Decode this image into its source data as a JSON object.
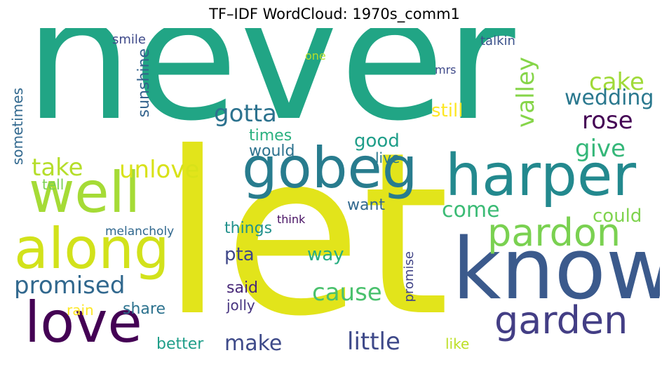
{
  "title": "TF–IDF WordCloud: 1970s_comm1",
  "words": [
    {
      "text": "never",
      "color": "#21a585",
      "vertical": false
    },
    {
      "text": "let",
      "color": "#e2e41b",
      "vertical": false
    },
    {
      "text": "know",
      "color": "#3b5a8c",
      "vertical": false
    },
    {
      "text": "harper",
      "color": "#23898e",
      "vertical": false
    },
    {
      "text": "gobeg",
      "color": "#287c8e",
      "vertical": false
    },
    {
      "text": "well",
      "color": "#a5db36",
      "vertical": false
    },
    {
      "text": "along",
      "color": "#d2e21b",
      "vertical": false
    },
    {
      "text": "love",
      "color": "#440154",
      "vertical": false
    },
    {
      "text": "garden",
      "color": "#433e85",
      "vertical": false
    },
    {
      "text": "pardon",
      "color": "#7ad151",
      "vertical": false
    },
    {
      "text": "valley",
      "color": "#86d549",
      "vertical": true
    },
    {
      "text": "cake",
      "color": "#a0da39",
      "vertical": false
    },
    {
      "text": "rose",
      "color": "#440154",
      "vertical": false
    },
    {
      "text": "wedding",
      "color": "#2a788e",
      "vertical": false
    },
    {
      "text": "give",
      "color": "#35b779",
      "vertical": false
    },
    {
      "text": "gotta",
      "color": "#2c728e",
      "vertical": false
    },
    {
      "text": "take",
      "color": "#b5de2b",
      "vertical": false
    },
    {
      "text": "unlove",
      "color": "#d8e219",
      "vertical": false
    },
    {
      "text": "promised",
      "color": "#31688e",
      "vertical": false
    },
    {
      "text": "cause",
      "color": "#4ac16d",
      "vertical": false
    },
    {
      "text": "little",
      "color": "#3e4989",
      "vertical": false
    },
    {
      "text": "make",
      "color": "#3e4a89",
      "vertical": false
    },
    {
      "text": "come",
      "color": "#3bbb75",
      "vertical": false
    },
    {
      "text": "could",
      "color": "#7fd34e",
      "vertical": false
    },
    {
      "text": "still",
      "color": "#fde725",
      "vertical": false
    },
    {
      "text": "good",
      "color": "#1f9e89",
      "vertical": false
    },
    {
      "text": "times",
      "color": "#2ab07f",
      "vertical": false
    },
    {
      "text": "would",
      "color": "#2c728e",
      "vertical": false
    },
    {
      "text": "live",
      "color": "#2a788e",
      "vertical": false
    },
    {
      "text": "want",
      "color": "#31688e",
      "vertical": false
    },
    {
      "text": "things",
      "color": "#21918c",
      "vertical": false
    },
    {
      "text": "way",
      "color": "#27ad81",
      "vertical": false
    },
    {
      "text": "pta",
      "color": "#3f4788",
      "vertical": false
    },
    {
      "text": "said",
      "color": "#482878",
      "vertical": false
    },
    {
      "text": "jolly",
      "color": "#46337f",
      "vertical": false
    },
    {
      "text": "share",
      "color": "#2c728e",
      "vertical": false
    },
    {
      "text": "rain",
      "color": "#fde725",
      "vertical": false
    },
    {
      "text": "better",
      "color": "#1f9e89",
      "vertical": false
    },
    {
      "text": "like",
      "color": "#bddf26",
      "vertical": false
    },
    {
      "text": "promise",
      "color": "#414487",
      "vertical": true
    },
    {
      "text": "think",
      "color": "#471063",
      "vertical": false
    },
    {
      "text": "melancholy",
      "color": "#31688e",
      "vertical": false
    },
    {
      "text": "tell",
      "color": "#7ad151",
      "vertical": false
    },
    {
      "text": "sometimes",
      "color": "#31688e",
      "vertical": true
    },
    {
      "text": "sunshine",
      "color": "#33638d",
      "vertical": true
    },
    {
      "text": "smile",
      "color": "#3e4989",
      "vertical": false
    },
    {
      "text": "talkin",
      "color": "#3b528b",
      "vertical": false
    },
    {
      "text": "one",
      "color": "#b5de2b",
      "vertical": false
    },
    {
      "text": "mrs",
      "color": "#3e4989",
      "vertical": false
    }
  ]
}
